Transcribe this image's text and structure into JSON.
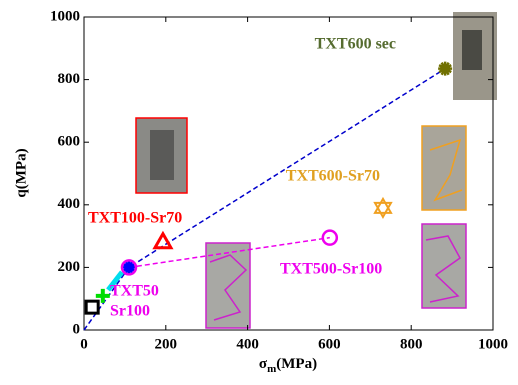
{
  "chart_data": {
    "type": "scatter",
    "xlabel": {
      "symbol": "σ",
      "subscript": "m",
      "unit": "(MPa)"
    },
    "ylabel": "q(MPa)",
    "xlim": [
      0,
      1000
    ],
    "ylim": [
      0,
      1000
    ],
    "xticks": [
      0,
      200,
      400,
      600,
      800,
      1000
    ],
    "yticks": [
      0,
      200,
      400,
      600,
      800,
      1000
    ],
    "series": [
      {
        "color": "#000000",
        "marker": "square",
        "x": [
          20
        ],
        "y": [
          73
        ]
      },
      {
        "color": "#00dd00",
        "marker": "plus",
        "x": [
          46
        ],
        "y": [
          109
        ]
      },
      {
        "color": "#00ddee",
        "marker": "segment",
        "x": [
          59,
          93
        ],
        "y": [
          128,
          185
        ]
      },
      {
        "color": "#0000ff",
        "marker": "asterisk",
        "x": [
          110
        ],
        "y": [
          200
        ]
      },
      {
        "color": "#ee00ee",
        "marker": "circle",
        "x": [
          110,
          601
        ],
        "y": [
          200,
          295
        ]
      },
      {
        "color": "#ff0000",
        "marker": "triangle",
        "x": [
          193
        ],
        "y": [
          282
        ]
      },
      {
        "color": "#f0a020",
        "marker": "hexagram",
        "x": [
          731
        ],
        "y": [
          390
        ]
      },
      {
        "color": "#707000",
        "marker": "asterisk",
        "x": [
          883
        ],
        "y": [
          835
        ]
      }
    ],
    "lines": [
      {
        "color": "#0000cc",
        "x": [
          0,
          110,
          883
        ],
        "y": [
          0,
          200,
          835
        ]
      },
      {
        "color": "#ee00ee",
        "x": [
          110,
          601
        ],
        "y": [
          200,
          295
        ]
      }
    ],
    "annotations": [
      {
        "text": [
          "TXT600 sec"
        ],
        "color": "#556b2f"
      },
      {
        "text": [
          "TXT600-Sr70"
        ],
        "color": "#e0a020"
      },
      {
        "text": [
          "TXT100-Sr70"
        ],
        "color": "#ff0000"
      },
      {
        "text": [
          "TXT500-Sr100"
        ],
        "color": "#ee00ee"
      },
      {
        "text": [
          "TXT50",
          "Sr100"
        ],
        "color": "#ee00ee"
      }
    ]
  }
}
